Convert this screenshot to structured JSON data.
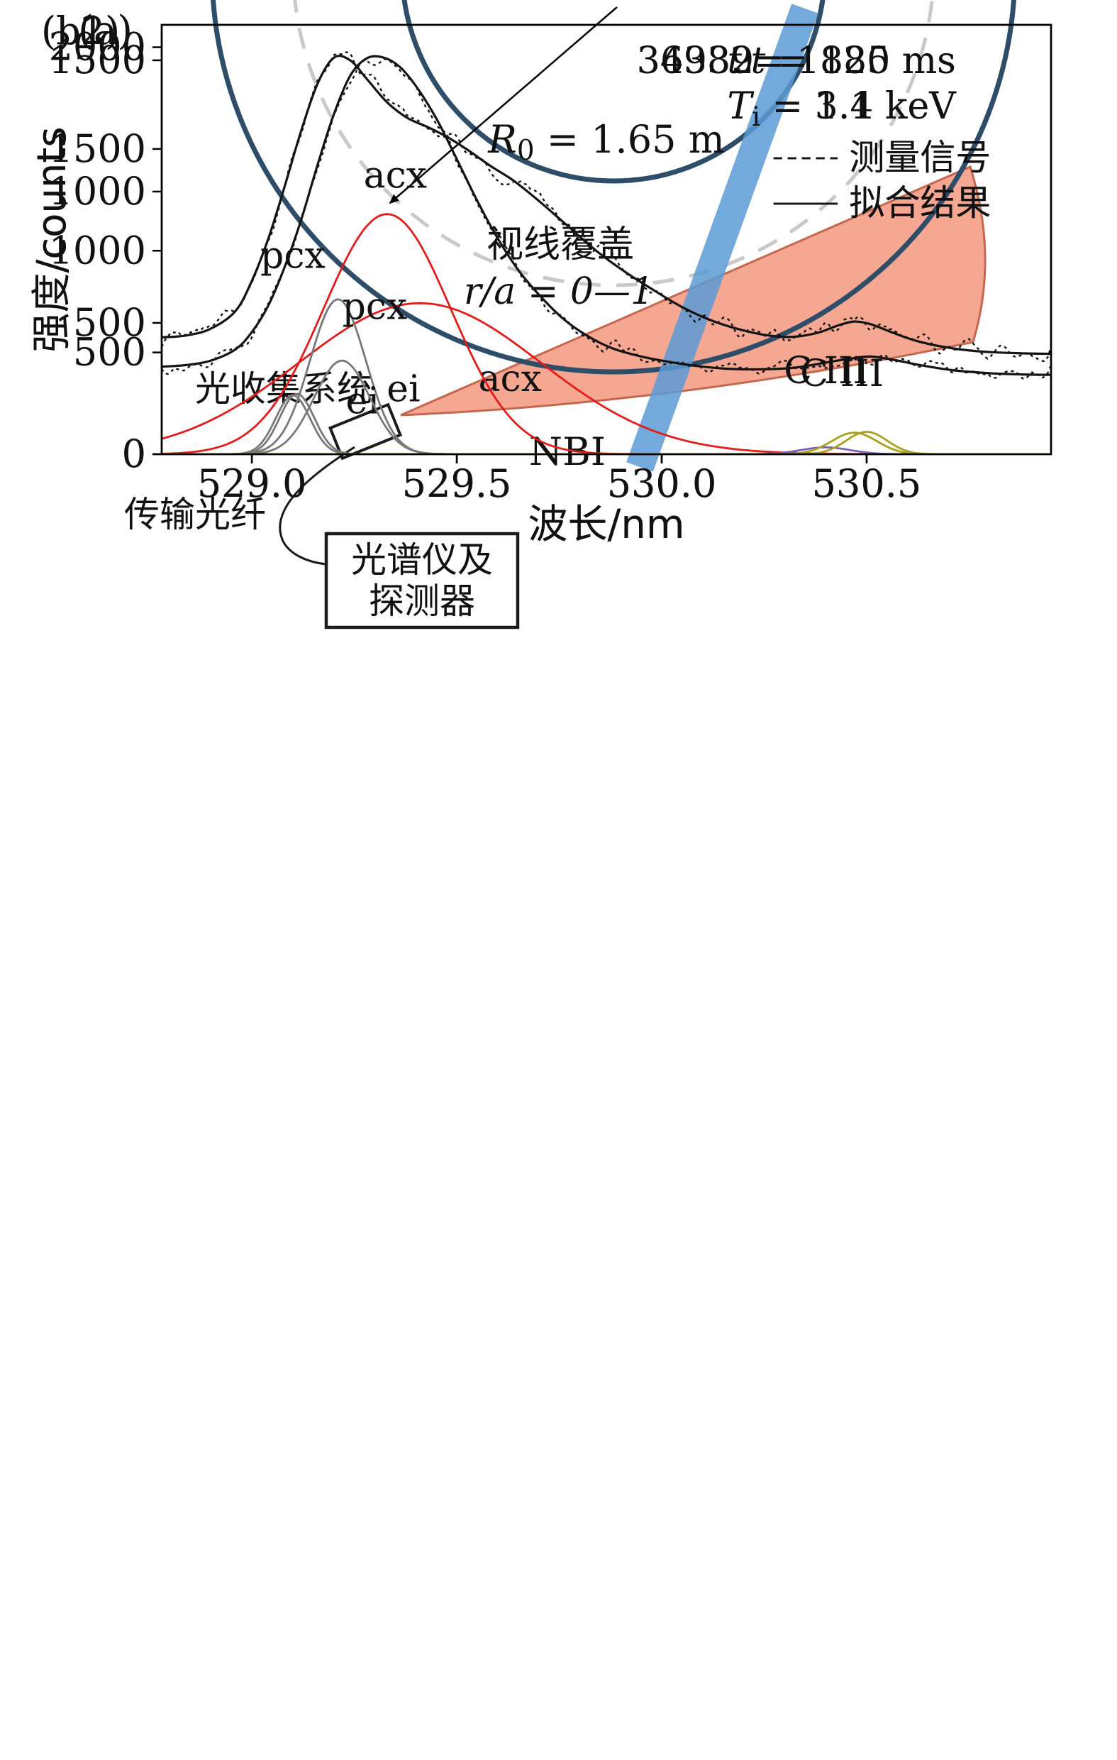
{
  "diagram": {
    "panel_label": "(a)",
    "radius_label": {
      "symbol": "R",
      "sub": "0",
      "rest": "= 1.65 m"
    },
    "coverage_label": "视线覆盖",
    "coverage_range": "r/a = 0—1",
    "nbi_label": "NBI",
    "optics_label": "光收集系统",
    "fiber_label": "传输光纤",
    "spectrometer_label_line1": "光谱仪及",
    "spectrometer_label_line2": "探测器",
    "colors": {
      "wall": "#2e4d68",
      "flux_dashed": "#c9c9c9",
      "fan_fill": "#f5a28c",
      "fan_edge": "#c4674e",
      "nbi_beam": "#5b9bd5"
    }
  },
  "chart_data": [
    {
      "type": "line",
      "panel_label": "(b1)",
      "shot": "36982",
      "time": {
        "symbol": "t",
        "rest": "= 1185 ms"
      },
      "ti": {
        "symbol": "T",
        "sub": "i",
        "rest": "= 3.1 keV"
      },
      "legend": [
        {
          "style": "dashed",
          "label": "测量信号"
        },
        {
          "style": "solid",
          "label": "拟合结果"
        }
      ],
      "xlabel": "波长/nm",
      "ylabel": "强度/counts",
      "xlim": [
        528.78,
        530.95
      ],
      "ylim": [
        0,
        1635
      ],
      "xticks": [
        529.0,
        529.5,
        530.0,
        530.5
      ],
      "yticks": [
        0,
        500,
        1000,
        1500
      ],
      "curve_color": "#141414",
      "noise_amp": 60,
      "seed": 9,
      "fit": {
        "x": [
          528.78,
          528.84,
          528.9,
          528.96,
          529.0,
          529.04,
          529.08,
          529.12,
          529.16,
          529.2,
          529.24,
          529.28,
          529.33,
          529.38,
          529.43,
          529.48,
          529.53,
          529.58,
          529.64,
          529.7,
          529.77,
          529.84,
          529.91,
          529.98,
          530.05,
          530.12,
          530.19,
          530.26,
          530.32,
          530.38,
          530.43,
          530.47,
          530.51,
          530.56,
          530.62,
          530.69,
          530.77,
          530.86,
          530.95
        ],
        "y": [
          445,
          452,
          478,
          545,
          660,
          820,
          1020,
          1230,
          1410,
          1510,
          1500,
          1430,
          1340,
          1280,
          1245,
          1205,
          1155,
          1100,
          1040,
          965,
          870,
          775,
          695,
          625,
          560,
          510,
          475,
          452,
          447,
          462,
          490,
          505,
          495,
          465,
          432,
          408,
          392,
          385,
          382
        ]
      },
      "components": [
        {
          "name": "acx",
          "color": "#e21b1b",
          "center": 529.41,
          "sigma": 0.295,
          "amp": 575,
          "label": "acx",
          "label_x": 529.63,
          "label_y": 240
        },
        {
          "name": "pcx",
          "color": "#787878",
          "center": 529.21,
          "sigma": 0.068,
          "amp": 590,
          "label": "pcx",
          "label_x": 529.1,
          "label_y": 710
        },
        {
          "name": "ei",
          "color": "#787878",
          "center": 529.11,
          "sigma": 0.042,
          "amp": 230,
          "label": "ei",
          "label_x": 529.27,
          "label_y": 155
        },
        {
          "name": "thermal",
          "color": "#7a5fb5",
          "center": 530.4,
          "sigma": 0.06,
          "amp": 26,
          "label": "",
          "label_x": 0,
          "label_y": 0
        },
        {
          "name": "ciii",
          "color": "#a8a21c",
          "center": 530.47,
          "sigma": 0.055,
          "amp": 82,
          "label": "C III",
          "label_x": 530.4,
          "label_y": 270
        }
      ]
    },
    {
      "type": "line",
      "panel_label": "(b2)",
      "shot": "34339",
      "time": {
        "symbol": "t",
        "rest": "= 820 ms"
      },
      "ti": {
        "symbol": "T",
        "sub": "i",
        "rest": "= 1.4 keV"
      },
      "legend": [
        {
          "style": "dashed",
          "label": "测量信号"
        },
        {
          "style": "solid",
          "label": "拟合结果"
        }
      ],
      "xlabel": "波长/nm",
      "ylabel": "强度/counts",
      "xlim": [
        528.78,
        530.95
      ],
      "ylim": [
        0,
        2110
      ],
      "xticks": [
        529.0,
        529.5,
        530.0,
        530.5
      ],
      "yticks": [
        0,
        500,
        1000,
        1500,
        2000
      ],
      "curve_color": "#141414",
      "noise_amp": 60,
      "seed": 27,
      "fit": {
        "x": [
          528.78,
          528.84,
          528.9,
          528.96,
          529.0,
          529.04,
          529.08,
          529.12,
          529.16,
          529.2,
          529.24,
          529.28,
          529.32,
          529.36,
          529.4,
          529.45,
          529.5,
          529.55,
          529.6,
          529.65,
          529.7,
          529.76,
          529.82,
          529.88,
          529.94,
          530.0,
          530.08,
          530.16,
          530.24,
          530.32,
          530.4,
          530.46,
          530.51,
          530.57,
          530.63,
          530.71,
          530.8,
          530.88,
          530.95
        ],
        "y": [
          430,
          438,
          460,
          515,
          600,
          730,
          920,
          1150,
          1420,
          1670,
          1860,
          1945,
          1950,
          1905,
          1810,
          1650,
          1450,
          1245,
          1060,
          905,
          785,
          665,
          580,
          520,
          485,
          460,
          435,
          420,
          417,
          424,
          450,
          470,
          480,
          462,
          438,
          413,
          398,
          392,
          390
        ]
      },
      "components": [
        {
          "name": "acx",
          "color": "#e21b1b",
          "center": 529.33,
          "sigma": 0.155,
          "amp": 1180,
          "label": "acx",
          "label_x": 529.35,
          "label_y": 1310
        },
        {
          "name": "pcx",
          "color": "#787878",
          "center": 529.22,
          "sigma": 0.068,
          "amp": 460,
          "label": "pcx",
          "label_x": 529.3,
          "label_y": 665
        },
        {
          "name": "ei",
          "color": "#787878",
          "center": 529.1,
          "sigma": 0.042,
          "amp": 290,
          "label": "ei",
          "label_x": 529.37,
          "label_y": 260
        },
        {
          "name": "ciii",
          "color": "#a8a21c",
          "center": 530.5,
          "sigma": 0.05,
          "amp": 110,
          "label": "C III",
          "label_x": 530.44,
          "label_y": 335
        }
      ]
    }
  ]
}
